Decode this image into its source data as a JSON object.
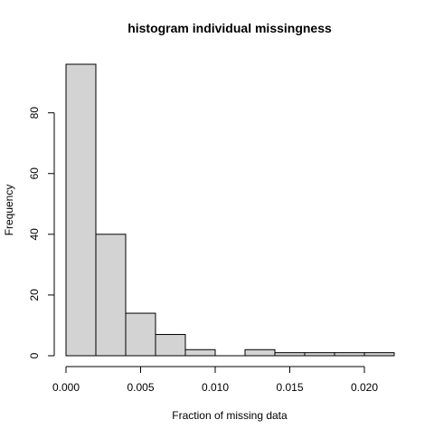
{
  "chart_data": {
    "type": "bar",
    "title": "histogram individual missingness",
    "xlabel": "Fraction of missing data",
    "ylabel": "Frequency",
    "bins": [
      {
        "x0": 0.0,
        "x1": 0.002,
        "count": 96
      },
      {
        "x0": 0.002,
        "x1": 0.004,
        "count": 40
      },
      {
        "x0": 0.004,
        "x1": 0.006,
        "count": 14
      },
      {
        "x0": 0.006,
        "x1": 0.008,
        "count": 7
      },
      {
        "x0": 0.008,
        "x1": 0.01,
        "count": 2
      },
      {
        "x0": 0.01,
        "x1": 0.012,
        "count": 0
      },
      {
        "x0": 0.012,
        "x1": 0.014,
        "count": 2
      },
      {
        "x0": 0.014,
        "x1": 0.016,
        "count": 1
      },
      {
        "x0": 0.016,
        "x1": 0.018,
        "count": 1
      },
      {
        "x0": 0.018,
        "x1": 0.02,
        "count": 1
      },
      {
        "x0": 0.02,
        "x1": 0.022,
        "count": 1
      }
    ],
    "xlim": [
      0,
      0.022
    ],
    "ylim": [
      0,
      96
    ],
    "xticks": [
      0.0,
      0.005,
      0.01,
      0.015,
      0.02
    ],
    "xtick_labels": [
      "0.000",
      "0.005",
      "0.010",
      "0.015",
      "0.020"
    ],
    "yticks": [
      0,
      20,
      40,
      60,
      80
    ],
    "ytick_labels": [
      "0",
      "20",
      "40",
      "60",
      "80"
    ],
    "bar_fill": "#d3d3d3",
    "bar_stroke": "#000000",
    "grid": false,
    "legend": false
  }
}
